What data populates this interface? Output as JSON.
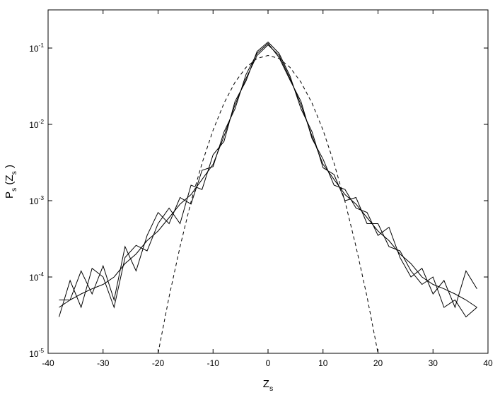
{
  "chart_data": {
    "type": "line",
    "log_y": true,
    "x_label": "Z_s",
    "y_label": "P_s (Z_s )",
    "x": [
      -38,
      -36,
      -34,
      -32,
      -30,
      -28,
      -26,
      -24,
      -22,
      -20,
      -18,
      -16,
      -14,
      -12,
      -10,
      -8,
      -6,
      -4,
      -2,
      0,
      2,
      4,
      6,
      8,
      10,
      12,
      14,
      16,
      18,
      20,
      22,
      24,
      26,
      28,
      30,
      32,
      34,
      36,
      38
    ],
    "series": [
      {
        "color": "#000000",
        "dash": false,
        "values": [
          4e-05,
          5e-05,
          6e-05,
          7e-05,
          8e-05,
          0.0001,
          0.00015,
          0.0002,
          0.0003,
          0.0004,
          0.0006,
          0.0009,
          0.0012,
          0.0019,
          0.003,
          0.007,
          0.018,
          0.04,
          0.08,
          0.11,
          0.08,
          0.04,
          0.018,
          0.007,
          0.003,
          0.0019,
          0.0012,
          0.0009,
          0.0006,
          0.0004,
          0.0003,
          0.0002,
          0.00015,
          0.0001,
          8e-05,
          7e-05,
          6e-05,
          5e-05,
          4e-05
        ]
      },
      {
        "color": "#000000",
        "dash": false,
        "values": [
          5e-05,
          5e-05,
          0.00012,
          6e-05,
          0.00014,
          5e-05,
          0.00025,
          0.00012,
          0.00035,
          0.0007,
          0.0005,
          0.0011,
          0.0009,
          0.0025,
          0.0028,
          0.008,
          0.016,
          0.045,
          0.085,
          0.115,
          0.075,
          0.038,
          0.02,
          0.0065,
          0.0035,
          0.0016,
          0.0014,
          0.0008,
          0.0007,
          0.00035,
          0.00045,
          0.00018,
          0.0001,
          0.00013,
          6e-05,
          9e-05,
          4e-05,
          0.00012,
          7e-05
        ]
      },
      {
        "color": "#000000",
        "dash": false,
        "values": [
          3e-05,
          9e-05,
          4e-05,
          0.00013,
          0.0001,
          4e-05,
          0.00018,
          0.00026,
          0.00022,
          0.0005,
          0.0008,
          0.0005,
          0.0016,
          0.0014,
          0.004,
          0.006,
          0.02,
          0.037,
          0.09,
          0.12,
          0.085,
          0.043,
          0.016,
          0.008,
          0.0027,
          0.0022,
          0.001,
          0.0011,
          0.0005,
          0.0005,
          0.00025,
          0.00022,
          0.00012,
          8e-05,
          0.0001,
          4e-05,
          5e-05,
          3e-05,
          4e-05
        ]
      },
      {
        "color": "#000000",
        "dash": true,
        "values": [
          null,
          null,
          null,
          null,
          null,
          null,
          null,
          null,
          null,
          1e-05,
          5.5e-05,
          0.00025,
          0.00097,
          0.0031,
          0.0084,
          0.019,
          0.0356,
          0.0558,
          0.0731,
          0.08,
          0.0731,
          0.0558,
          0.0356,
          0.019,
          0.0084,
          0.0031,
          0.00097,
          0.00025,
          5.5e-05,
          1e-05,
          null,
          null,
          null,
          null,
          null,
          null,
          null,
          null,
          null
        ]
      }
    ],
    "xlim": [
      -40,
      40
    ],
    "xticks": [
      -40,
      -30,
      -20,
      -10,
      0,
      10,
      20,
      30,
      40
    ],
    "ylim": [
      1e-05,
      0.3162
    ],
    "yticks": [
      {
        "value": 1e-05,
        "label": "10^-5"
      },
      {
        "value": 0.0001,
        "label": "10^-4"
      },
      {
        "value": 0.001,
        "label": "10^-3"
      },
      {
        "value": 0.01,
        "label": "10^-2"
      },
      {
        "value": 0.1,
        "label": "10^-1"
      }
    ]
  }
}
